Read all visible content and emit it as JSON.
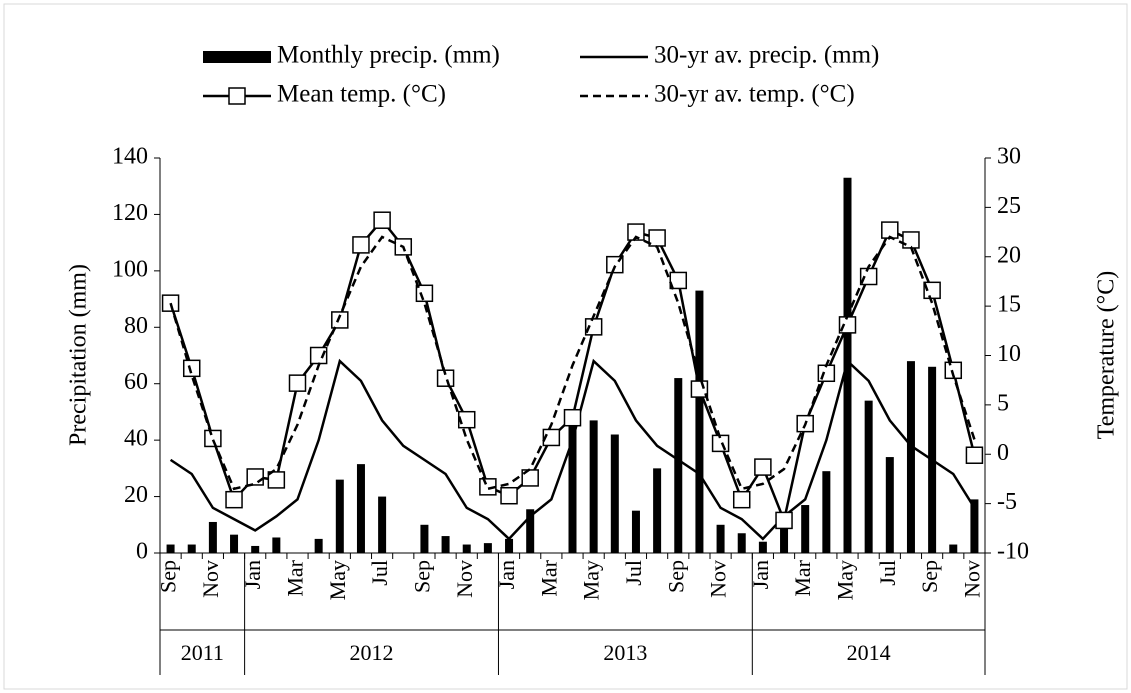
{
  "chart_data": {
    "type": "bar_line",
    "categories": [
      "Sep",
      null,
      "Nov",
      null,
      "Jan",
      null,
      "Mar",
      null,
      "May",
      null,
      "Jul",
      null,
      "Sep",
      null,
      "Nov",
      null,
      "Jan",
      null,
      "Mar",
      null,
      "May",
      null,
      "Jul",
      null,
      "Sep",
      null,
      "Nov",
      null,
      "Jan",
      null,
      "Mar",
      null,
      "May",
      null,
      "Jul",
      null,
      "Sep",
      null,
      "Nov"
    ],
    "year_groups": [
      {
        "label": "2011",
        "months": 4
      },
      {
        "label": "2012",
        "months": 12
      },
      {
        "label": "2013",
        "months": 12
      },
      {
        "label": "2014",
        "months": 11
      }
    ],
    "series": [
      {
        "name": "Monthly precip. (mm)",
        "kind": "bar",
        "color": "#000000",
        "axis": "y",
        "values": [
          3,
          3,
          11,
          6.5,
          2.5,
          5.5,
          0,
          5,
          26,
          31.5,
          20,
          0,
          10,
          6,
          3,
          3.5,
          5,
          15.5,
          0,
          48,
          47,
          42,
          15,
          30,
          62,
          93,
          10,
          7,
          4,
          12,
          17,
          29,
          133,
          54,
          34,
          68,
          66,
          3,
          19
        ]
      },
      {
        "name": "30-yr av. precip. (mm)",
        "kind": "line",
        "color": "#000000",
        "axis": "y",
        "values": [
          33,
          28,
          16,
          12,
          8,
          13,
          19,
          40,
          68,
          61,
          47,
          38,
          33,
          28,
          16,
          12,
          5,
          13,
          19,
          40,
          68,
          61,
          47,
          38,
          33,
          28,
          16,
          12,
          5,
          13,
          19,
          40,
          68,
          61,
          47,
          38,
          33,
          28,
          16
        ]
      },
      {
        "name": "Mean temp. (°C)",
        "kind": "line",
        "marker": "square",
        "color": "#000000",
        "axis": "y2",
        "values": [
          15.3,
          8.7,
          1.6,
          -4.6,
          -2.3,
          -2.6,
          7.2,
          10.0,
          13.6,
          21.2,
          23.7,
          21.0,
          16.3,
          7.7,
          3.5,
          -3.3,
          -4.2,
          -2.4,
          1.7,
          3.7,
          12.9,
          19.2,
          22.5,
          21.9,
          17.6,
          6.6,
          1.1,
          -4.6,
          -1.3,
          -6.7,
          3.1,
          8.2,
          13.1,
          18.0,
          22.7,
          21.7,
          16.6,
          8.5,
          -0.1
        ]
      },
      {
        "name": "30-yr av. temp. (°C)",
        "kind": "line",
        "dash": true,
        "color": "#000000",
        "axis": "y2",
        "values": [
          15.3,
          8,
          1.5,
          -3.5,
          -3,
          -1.5,
          3,
          9,
          14,
          19,
          22,
          21,
          15.3,
          8,
          1.5,
          -3.5,
          -3,
          -1.5,
          3,
          9,
          14,
          19,
          22,
          21,
          15.3,
          8,
          1.5,
          -3.5,
          -3,
          -1.5,
          3,
          9,
          14,
          19,
          22,
          21,
          15.3,
          8,
          1.5
        ]
      }
    ],
    "ylabel": "Precipitation (mm)",
    "y2label": "Temperature (°C)",
    "ylim": [
      0,
      140
    ],
    "yticks": [
      0,
      20,
      40,
      60,
      80,
      100,
      120,
      140
    ],
    "y2lim": [
      -10,
      30
    ],
    "y2ticks": [
      -10,
      -5,
      0,
      5,
      10,
      15,
      20,
      25,
      30
    ]
  }
}
